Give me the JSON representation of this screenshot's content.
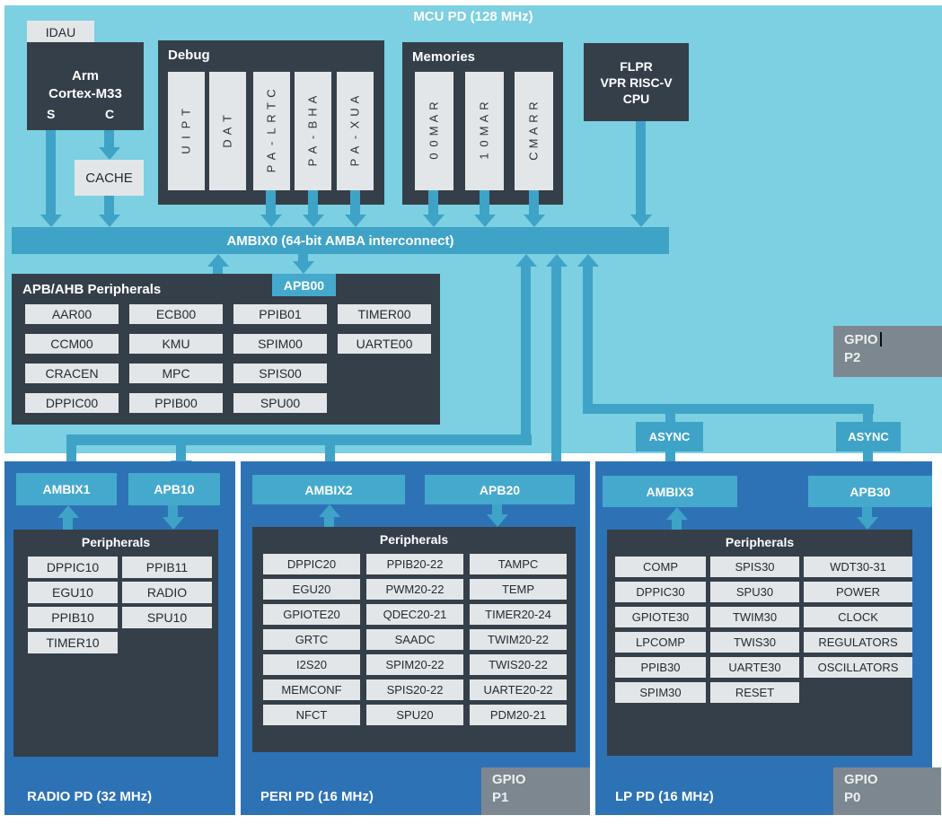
{
  "header": {
    "title": "MCU PD (128 MHz)"
  },
  "colors": {
    "background": "#7cd0e1",
    "connector": "#3fa3c8",
    "dark_block": "#343f49",
    "chip": "#e3e6e8",
    "panel_blue": "#2e72b6",
    "gpio_gray": "#7d878f"
  },
  "cpu": {
    "idau": "IDAU",
    "line1": "Arm",
    "line2": "Cortex-M33",
    "port_s": "S",
    "port_c": "C",
    "cache": "CACHE"
  },
  "debug": {
    "title": "Debug",
    "columns": [
      "TPIU",
      "TAD",
      "CTRL-AP",
      "AHB-AP",
      "AUX-AP"
    ]
  },
  "memories": {
    "title": "Memories",
    "columns": [
      "RAM00",
      "RAM01",
      "RRAMC"
    ]
  },
  "flpr": {
    "line1": "FLPR",
    "line2": "VPR RISC-V",
    "line3": "CPU"
  },
  "ambix0": {
    "label": "AMBIX0 (64-bit AMBA interconnect)"
  },
  "apb_ahb": {
    "title": "APB/AHB Peripherals",
    "tab": "APB00",
    "chips": [
      [
        "AAR00",
        "ECB00",
        "PPIB01",
        "TIMER00"
      ],
      [
        "CCM00",
        "KMU",
        "SPIM00",
        "UARTE00"
      ],
      [
        "CRACEN",
        "MPC",
        "SPIS00",
        null
      ],
      [
        "DPPIC00",
        "PPIB00",
        "SPU00",
        null
      ]
    ]
  },
  "gpio_p2": {
    "line1": "GPIO",
    "line2": "P2"
  },
  "async_left": {
    "label": "ASYNC"
  },
  "async_right": {
    "label": "ASYNC"
  },
  "radio_pd": {
    "label": "RADIO PD (32 MHz)",
    "ambix": "AMBIX1",
    "apb": "APB10",
    "peripherals_title": "Peripherals",
    "chips": [
      [
        "DPPIC10",
        "PPIB11"
      ],
      [
        "EGU10",
        "RADIO"
      ],
      [
        "PPIB10",
        "SPU10"
      ],
      [
        "TIMER10",
        null
      ]
    ]
  },
  "peri_pd": {
    "label": "PERI PD (16 MHz)",
    "ambix": "AMBIX2",
    "apb": "APB20",
    "peripherals_title": "Peripherals",
    "gpio": {
      "line1": "GPIO",
      "line2": "P1"
    },
    "chips": [
      [
        "DPPIC20",
        "PPIB20-22",
        "TAMPC"
      ],
      [
        "EGU20",
        "PWM20-22",
        "TEMP"
      ],
      [
        "GPIOTE20",
        "QDEC20-21",
        "TIMER20-24"
      ],
      [
        "GRTC",
        "SAADC",
        "TWIM20-22"
      ],
      [
        "I2S20",
        "SPIM20-22",
        "TWIS20-22"
      ],
      [
        "MEMCONF",
        "SPIS20-22",
        "UARTE20-22"
      ],
      [
        "NFCT",
        "SPU20",
        "PDM20-21"
      ]
    ]
  },
  "lp_pd": {
    "label": "LP PD (16 MHz)",
    "ambix": "AMBIX3",
    "apb": "APB30",
    "peripherals_title": "Peripherals",
    "gpio": {
      "line1": "GPIO",
      "line2": "P0"
    },
    "chips": [
      [
        "COMP",
        "SPIS30",
        "WDT30-31"
      ],
      [
        "DPPIC30",
        "SPU30",
        "POWER"
      ],
      [
        "GPIOTE30",
        "TWIM30",
        "CLOCK"
      ],
      [
        "LPCOMP",
        "TWIS30",
        "REGULATORS"
      ],
      [
        "PPIB30",
        "UARTE30",
        "OSCILLATORS"
      ],
      [
        "SPIM30",
        "RESET",
        null
      ]
    ]
  }
}
